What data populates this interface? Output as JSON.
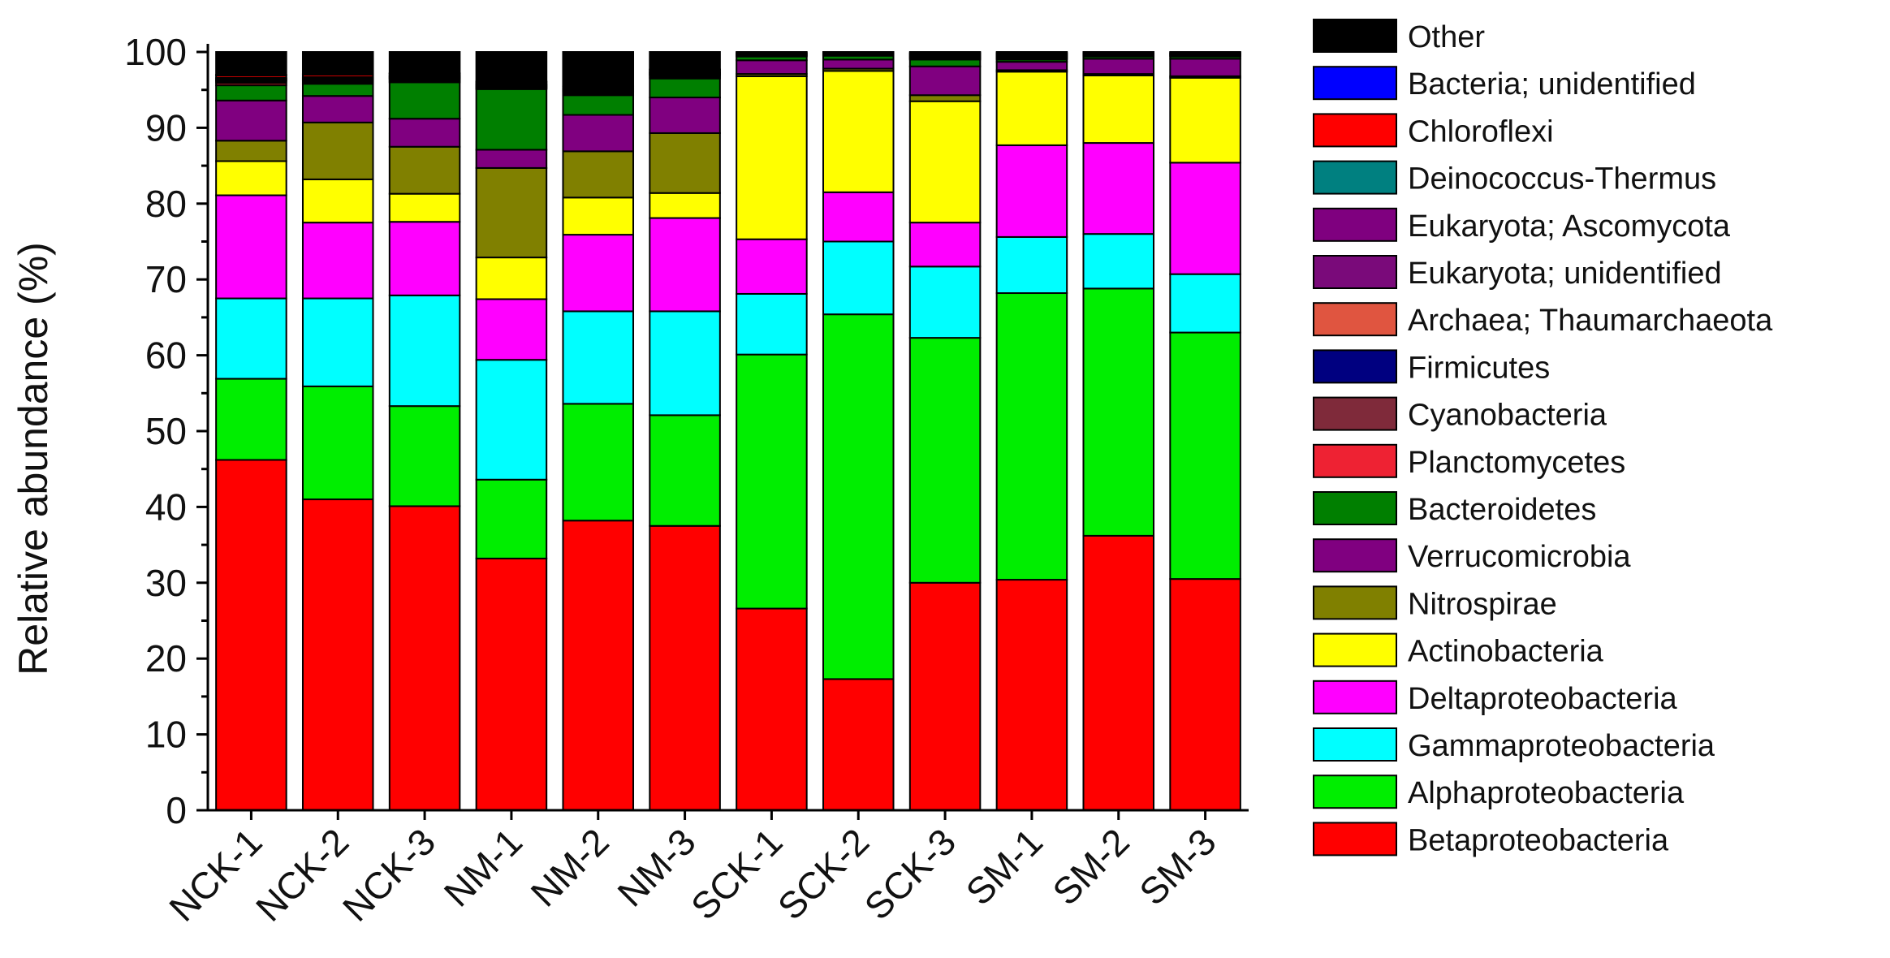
{
  "chart_data": {
    "type": "bar",
    "stacked": true,
    "title": "",
    "xlabel": "",
    "ylabel": "Relative abundance (%)",
    "ylim": [
      0,
      100
    ],
    "yticks": [
      0,
      10,
      20,
      30,
      40,
      50,
      60,
      70,
      80,
      90,
      100
    ],
    "grid": false,
    "legend_position": "right",
    "categories": [
      "NCK-1",
      "NCK-2",
      "NCK-3",
      "NM-1",
      "NM-2",
      "NM-3",
      "SCK-1",
      "SCK-2",
      "SCK-3",
      "SM-1",
      "SM-2",
      "SM-3"
    ],
    "series": [
      {
        "name": "Betaproteobacteria",
        "color": "#ff0000",
        "values": [
          46.2,
          41.0,
          40.1,
          33.2,
          38.2,
          37.5,
          26.6,
          17.3,
          30.0,
          30.4,
          36.2,
          30.5
        ]
      },
      {
        "name": "Alphaproteobacteria",
        "color": "#00ee00",
        "values": [
          10.7,
          14.9,
          13.2,
          10.4,
          15.4,
          14.6,
          33.5,
          48.1,
          32.3,
          37.8,
          32.6,
          32.5
        ]
      },
      {
        "name": "Gammaproteobacteria",
        "color": "#00ffff",
        "values": [
          10.6,
          11.6,
          14.6,
          15.8,
          12.2,
          13.7,
          8.0,
          9.6,
          9.4,
          7.4,
          7.2,
          7.7
        ]
      },
      {
        "name": "Deltaproteobacteria",
        "color": "#ff00ff",
        "values": [
          13.6,
          10.0,
          9.7,
          8.0,
          10.1,
          12.3,
          7.2,
          6.5,
          5.8,
          12.1,
          12.0,
          14.7
        ]
      },
      {
        "name": "Actinobacteria",
        "color": "#ffff00",
        "values": [
          4.5,
          5.7,
          3.7,
          5.5,
          4.9,
          3.3,
          21.5,
          16.0,
          16.0,
          9.7,
          8.9,
          11.2
        ]
      },
      {
        "name": "Nitrospirae",
        "color": "#808000",
        "values": [
          2.7,
          7.5,
          6.2,
          11.8,
          6.1,
          7.9,
          0.3,
          0.3,
          0.8,
          0.2,
          0.2,
          0.2
        ]
      },
      {
        "name": "Verrucomicrobia",
        "color": "#800080",
        "values": [
          5.3,
          3.5,
          3.7,
          2.4,
          4.8,
          4.7,
          1.8,
          1.2,
          3.8,
          1.1,
          2.0,
          2.3
        ]
      },
      {
        "name": "Bacteroidetes",
        "color": "#007f00",
        "values": [
          2.0,
          1.6,
          4.8,
          8.0,
          2.6,
          2.5,
          0.5,
          0.5,
          0.9,
          0.3,
          0.3,
          0.3
        ]
      },
      {
        "name": "Planctomycetes",
        "color": "#ee2233",
        "values": [
          0.3,
          0.2,
          0.2,
          0.1,
          0.2,
          0.2,
          0.1,
          0.1,
          0.1,
          0.1,
          0.1,
          0.1
        ]
      },
      {
        "name": "Cyanobacteria",
        "color": "#7f2a3a",
        "values": [
          0.2,
          0.2,
          0.2,
          0.1,
          0.2,
          0.2,
          0.1,
          0.1,
          0.1,
          0.1,
          0.1,
          0.1
        ]
      },
      {
        "name": "Firmicutes",
        "color": "#000080",
        "values": [
          0.1,
          0.1,
          0.1,
          0.1,
          0.1,
          0.1,
          0.1,
          0.1,
          0.1,
          0.1,
          0.1,
          0.1
        ]
      },
      {
        "name": "Archaea; Thaumarchaeota",
        "color": "#e05540",
        "values": [
          0.1,
          0.1,
          0.1,
          0.1,
          0.1,
          0.1,
          0.1,
          0.1,
          0.1,
          0.1,
          0.1,
          0.1
        ]
      },
      {
        "name": "Eukaryota; unidentified",
        "color": "#7a0a7a",
        "values": [
          0.1,
          0.1,
          0.1,
          0.1,
          0.1,
          0.1,
          0.1,
          0.1,
          0.1,
          0.1,
          0.1,
          0.1
        ]
      },
      {
        "name": "Eukaryota; Ascomycota",
        "color": "#7f007f",
        "values": [
          0.1,
          0.1,
          0.1,
          0.1,
          0.1,
          0.1,
          0.1,
          0.1,
          0.1,
          0.1,
          0.1,
          0.1
        ]
      },
      {
        "name": "Deinococcus-Thermus",
        "color": "#008080",
        "values": [
          0.1,
          0.1,
          0.1,
          0.1,
          0.1,
          0.1,
          0.1,
          0.1,
          0.1,
          0.1,
          0.1,
          0.1
        ]
      },
      {
        "name": "Chloroflexi",
        "color": "#ff0000",
        "values": [
          0.3,
          0.3,
          0.2,
          0.2,
          0.2,
          0.2,
          0.1,
          0.1,
          0.1,
          0.1,
          0.1,
          0.1
        ]
      },
      {
        "name": "Bacteria; unidentified",
        "color": "#0000ff",
        "values": [
          0.1,
          0.1,
          0.1,
          0.1,
          0.1,
          0.1,
          0.1,
          0.1,
          0.1,
          0.1,
          0.1,
          0.1
        ]
      },
      {
        "name": "Other",
        "color": "#000000",
        "values": [
          3.0,
          3.0,
          2.9,
          4.4,
          4.8,
          2.7,
          0.8,
          0.8,
          0.6,
          0.7,
          0.5,
          0.7
        ]
      }
    ]
  }
}
